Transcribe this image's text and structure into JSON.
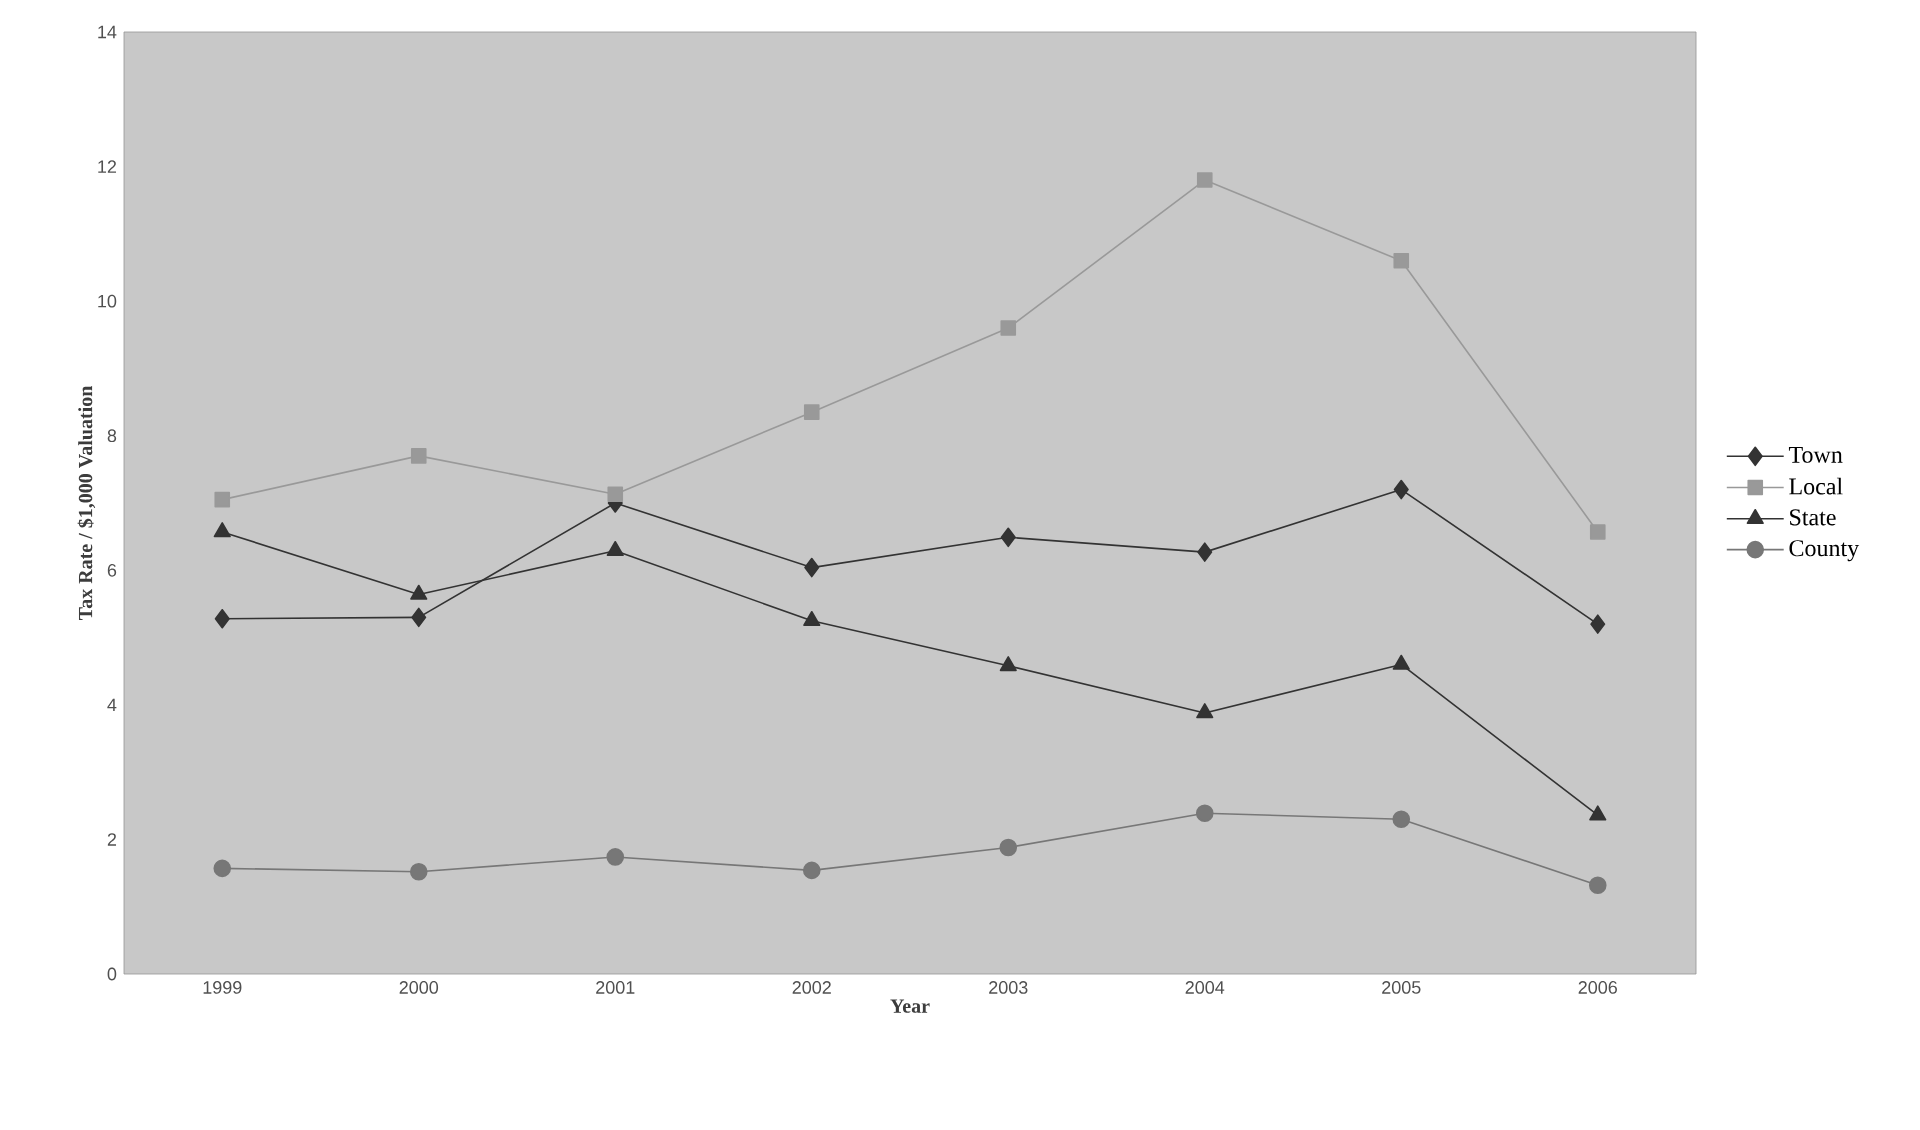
{
  "chart_data": {
    "type": "line",
    "xlabel": "Year",
    "ylabel": "Tax Rate / $1,000 Valuation",
    "categories": [
      "1999",
      "2000",
      "2001",
      "2002",
      "2003",
      "2004",
      "2005",
      "2006"
    ],
    "ylim": [
      0,
      14
    ],
    "yticks": [
      0,
      2,
      4,
      6,
      8,
      10,
      12,
      14
    ],
    "grid": false,
    "legend": "right",
    "series": [
      {
        "name": "Town",
        "color": "#333333",
        "marker": "diamond",
        "values": [
          5.28,
          5.3,
          7.0,
          6.04,
          6.49,
          6.27,
          7.2,
          5.2
        ]
      },
      {
        "name": "Local",
        "color": "#999999",
        "marker": "square",
        "values": [
          7.05,
          7.7,
          7.13,
          8.35,
          9.6,
          11.8,
          10.6,
          6.57
        ]
      },
      {
        "name": "State",
        "color": "#333333",
        "marker": "triangle",
        "values": [
          6.57,
          5.64,
          6.29,
          5.25,
          4.58,
          3.88,
          4.6,
          2.36
        ]
      },
      {
        "name": "County",
        "color": "#777777",
        "marker": "circle",
        "values": [
          1.57,
          1.52,
          1.74,
          1.54,
          1.88,
          2.39,
          2.3,
          1.32
        ]
      }
    ]
  }
}
